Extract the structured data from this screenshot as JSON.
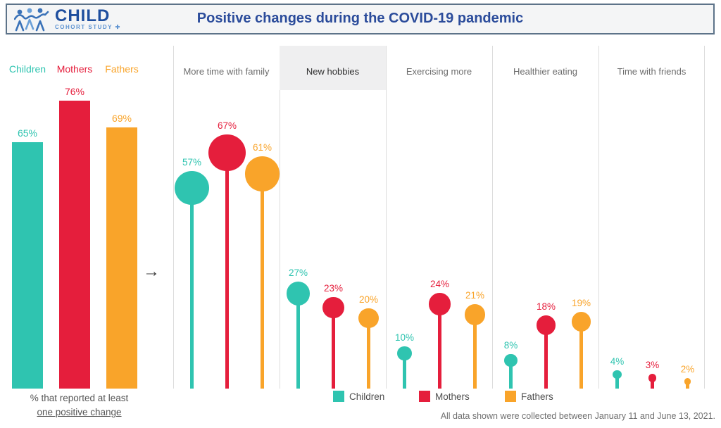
{
  "header": {
    "logo": {
      "icon": "three-people-logo",
      "name": "CHILD",
      "subtitle": "COHORT STUDY ✚"
    },
    "title": "Positive changes during the COVID-19 pandemic"
  },
  "arrow_glyph": "→",
  "summary_caption": {
    "line1": "% that reported at least",
    "line2": "one positive change"
  },
  "footnote": "All data shown were collected between January 11 and June 13, 2021.",
  "colors": {
    "children": "#2FC4B0",
    "mothers": "#E51E3C",
    "fathers": "#F9A42A",
    "header_border": "#5D7389",
    "highlight_band": "#EFEFF0"
  },
  "chart_data": [
    {
      "type": "bar",
      "title": "% that reported at least one positive change",
      "categories": [
        "Children",
        "Mothers",
        "Fathers"
      ],
      "values": [
        65,
        76,
        69
      ],
      "bar_colors": [
        "#2FC4B0",
        "#E51E3C",
        "#F9A42A"
      ],
      "unit": "%",
      "ylim": [
        0,
        100
      ],
      "grid": false,
      "data_labels": [
        "65%",
        "76%",
        "69%"
      ]
    },
    {
      "type": "bar",
      "variant": "lollipop",
      "title": "Positive changes during the COVID-19 pandemic",
      "categories": [
        "More time with family",
        "New hobbies",
        "Exercising more",
        "Healthier eating",
        "Time with friends"
      ],
      "series": [
        {
          "name": "Children",
          "color": "#2FC4B0",
          "values": [
            57,
            27,
            10,
            8,
            4
          ]
        },
        {
          "name": "Mothers",
          "color": "#E51E3C",
          "values": [
            67,
            23,
            24,
            18,
            3
          ]
        },
        {
          "name": "Fathers",
          "color": "#F9A42A",
          "values": [
            61,
            20,
            21,
            19,
            2
          ]
        }
      ],
      "unit": "%",
      "highlighted_category": "New hobbies",
      "legend_position": "bottom",
      "ylim": [
        0,
        100
      ],
      "grid": false
    }
  ]
}
